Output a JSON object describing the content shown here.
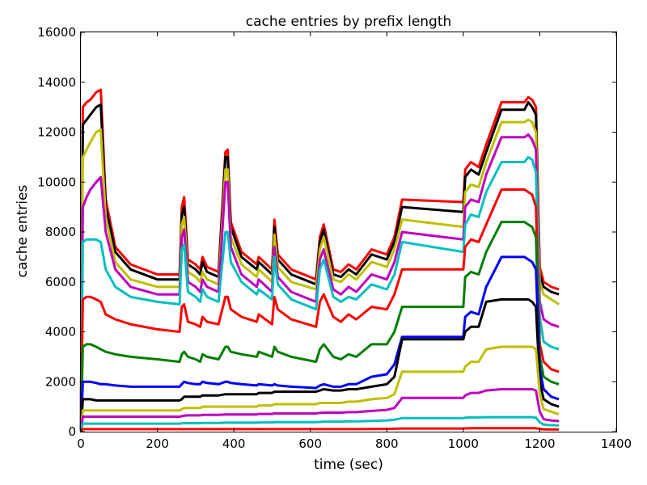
{
  "chart_data": {
    "type": "line",
    "title": "cache entries by prefix length",
    "xlabel": "time (sec)",
    "ylabel": "cache entries",
    "xlim": [
      0,
      1400
    ],
    "ylim": [
      0,
      16000
    ],
    "xticks": [
      0,
      200,
      400,
      600,
      800,
      1000,
      1200,
      1400
    ],
    "yticks": [
      0,
      2000,
      4000,
      6000,
      8000,
      10000,
      12000,
      14000,
      16000
    ],
    "grid": false,
    "legend": "none",
    "x": [
      0,
      5,
      15,
      25,
      40,
      52,
      65,
      90,
      130,
      200,
      258,
      264,
      270,
      280,
      300,
      312,
      318,
      330,
      360,
      378,
      384,
      392,
      420,
      460,
      465,
      500,
      506,
      515,
      550,
      615,
      625,
      635,
      660,
      680,
      700,
      720,
      760,
      800,
      820,
      840,
      1000,
      1005,
      1020,
      1040,
      1060,
      1100,
      1160,
      1170,
      1180,
      1190,
      1200,
      1210,
      1230,
      1250
    ],
    "series": [
      {
        "color": "#ff0000",
        "values": [
          0,
          13000,
          13200,
          13300,
          13600,
          13700,
          9300,
          7400,
          6700,
          6300,
          6300,
          9000,
          9400,
          6900,
          6700,
          6500,
          7000,
          6600,
          6400,
          11200,
          11300,
          8400,
          7200,
          6700,
          7000,
          6500,
          8500,
          7100,
          6500,
          6100,
          7800,
          8300,
          6500,
          6400,
          6700,
          6500,
          7300,
          7100,
          7800,
          9300,
          9200,
          10500,
          10800,
          10600,
          11500,
          13200,
          13200,
          13400,
          13300,
          13000,
          6600,
          6000,
          5800,
          5700
        ]
      },
      {
        "color": "#000000",
        "values": [
          0,
          12300,
          12500,
          12700,
          13000,
          13100,
          9000,
          7200,
          6500,
          6100,
          6100,
          8700,
          9000,
          6700,
          6500,
          6300,
          6800,
          6400,
          6200,
          11000,
          11000,
          8200,
          7000,
          6500,
          6800,
          6300,
          8200,
          6900,
          6300,
          5900,
          7600,
          8100,
          6300,
          6200,
          6500,
          6300,
          7100,
          6900,
          7600,
          9000,
          8800,
          10200,
          10500,
          10300,
          11200,
          12900,
          12900,
          13200,
          13000,
          12700,
          6300,
          5800,
          5600,
          5500
        ]
      },
      {
        "color": "#bfbf00",
        "values": [
          0,
          11000,
          11300,
          11600,
          12000,
          12100,
          8600,
          6800,
          6100,
          5800,
          5800,
          8300,
          8600,
          6400,
          6200,
          6000,
          6400,
          6100,
          5900,
          10500,
          10500,
          7800,
          6700,
          6200,
          6500,
          6000,
          7900,
          6600,
          6000,
          5700,
          7300,
          7800,
          6100,
          6000,
          6300,
          6100,
          6800,
          6600,
          7300,
          8500,
          8200,
          9600,
          9900,
          9800,
          10800,
          12400,
          12400,
          12500,
          12400,
          12000,
          6000,
          5500,
          5300,
          5100
        ]
      },
      {
        "color": "#bf00bf",
        "values": [
          0,
          9000,
          9400,
          9700,
          10000,
          10200,
          8000,
          6500,
          5800,
          5500,
          5500,
          7800,
          8100,
          6000,
          5800,
          5600,
          6100,
          5800,
          5600,
          10000,
          10000,
          7400,
          6300,
          5800,
          6100,
          5600,
          7400,
          6200,
          5600,
          5200,
          6900,
          7300,
          5700,
          5500,
          5800,
          5600,
          6300,
          6100,
          6800,
          8000,
          7700,
          9000,
          9300,
          9200,
          10300,
          11800,
          11800,
          11900,
          11700,
          11300,
          5200,
          4500,
          4300,
          4200
        ]
      },
      {
        "color": "#00bfbf",
        "values": [
          0,
          7600,
          7700,
          7700,
          7700,
          7600,
          6500,
          5800,
          5400,
          5200,
          5100,
          7300,
          7500,
          5600,
          5400,
          5200,
          5700,
          5400,
          5200,
          8000,
          8000,
          6800,
          6000,
          5500,
          5700,
          5300,
          7000,
          5900,
          5300,
          4900,
          6500,
          6900,
          5400,
          5200,
          5400,
          5300,
          5900,
          5700,
          6300,
          7600,
          7200,
          8300,
          8700,
          8600,
          9600,
          10800,
          10800,
          11000,
          10900,
          10400,
          4600,
          3600,
          3400,
          3300
        ]
      },
      {
        "color": "#ff0000",
        "values": [
          0,
          5300,
          5400,
          5400,
          5300,
          5200,
          4700,
          4500,
          4300,
          4100,
          4000,
          5000,
          5100,
          4400,
          4300,
          4200,
          4600,
          4400,
          4300,
          5400,
          5400,
          4900,
          4600,
          4400,
          4700,
          4300,
          5400,
          4900,
          4500,
          4200,
          5200,
          5500,
          4600,
          4400,
          4700,
          4500,
          5000,
          4900,
          5500,
          6500,
          6500,
          7400,
          7700,
          7600,
          8300,
          9700,
          9700,
          9600,
          9500,
          9000,
          3500,
          2800,
          2500,
          2400
        ]
      },
      {
        "color": "#007f00",
        "values": [
          0,
          3400,
          3500,
          3500,
          3400,
          3300,
          3200,
          3100,
          3000,
          2900,
          2800,
          3100,
          3200,
          3000,
          2900,
          2800,
          3100,
          3000,
          2900,
          3400,
          3400,
          3200,
          3100,
          3000,
          3200,
          3000,
          3400,
          3200,
          3000,
          2800,
          3300,
          3500,
          3000,
          2900,
          3100,
          3000,
          3500,
          3500,
          4000,
          5000,
          5000,
          6200,
          6400,
          6300,
          7200,
          8400,
          8400,
          8300,
          8200,
          7800,
          3000,
          2200,
          2000,
          1900
        ]
      },
      {
        "color": "#0000ff",
        "values": [
          0,
          2000,
          2000,
          2000,
          1950,
          1900,
          1900,
          1850,
          1800,
          1800,
          1800,
          1900,
          2000,
          1950,
          1900,
          1900,
          2000,
          1950,
          1900,
          2000,
          2000,
          1950,
          1900,
          1850,
          1900,
          1850,
          1900,
          1850,
          1800,
          1750,
          1850,
          1900,
          1800,
          1800,
          1900,
          1900,
          2200,
          2300,
          2700,
          3800,
          3800,
          4600,
          4800,
          4700,
          5800,
          7000,
          7000,
          6900,
          6800,
          6500,
          2500,
          1700,
          1400,
          1300
        ]
      },
      {
        "color": "#000000",
        "values": [
          0,
          1300,
          1300,
          1300,
          1250,
          1250,
          1250,
          1250,
          1250,
          1250,
          1250,
          1300,
          1400,
          1400,
          1400,
          1400,
          1450,
          1450,
          1450,
          1500,
          1500,
          1500,
          1500,
          1500,
          1550,
          1550,
          1600,
          1600,
          1600,
          1600,
          1650,
          1700,
          1650,
          1650,
          1700,
          1700,
          1800,
          1900,
          2200,
          3700,
          3700,
          4000,
          4200,
          4200,
          5200,
          5300,
          5300,
          5300,
          5200,
          5000,
          2000,
          1300,
          1100,
          1000
        ]
      },
      {
        "color": "#bfbf00",
        "values": [
          0,
          850,
          850,
          850,
          850,
          850,
          850,
          850,
          850,
          850,
          850,
          900,
          950,
          950,
          950,
          950,
          1000,
          1000,
          1000,
          1000,
          1000,
          1000,
          1000,
          1000,
          1050,
          1050,
          1100,
          1100,
          1100,
          1100,
          1150,
          1150,
          1150,
          1150,
          1200,
          1200,
          1300,
          1350,
          1500,
          2400,
          2400,
          2600,
          2800,
          2800,
          3300,
          3400,
          3400,
          3400,
          3400,
          3300,
          1500,
          900,
          800,
          700
        ]
      },
      {
        "color": "#bf00bf",
        "values": [
          0,
          600,
          600,
          600,
          600,
          600,
          600,
          600,
          600,
          600,
          600,
          620,
          640,
          650,
          650,
          650,
          670,
          670,
          670,
          690,
          690,
          690,
          690,
          690,
          710,
          710,
          730,
          730,
          730,
          730,
          750,
          760,
          760,
          760,
          780,
          780,
          830,
          870,
          950,
          1350,
          1350,
          1450,
          1550,
          1550,
          1650,
          1700,
          1700,
          1700,
          1700,
          1650,
          800,
          500,
          450,
          420
        ]
      },
      {
        "color": "#00bfbf",
        "values": [
          0,
          320,
          320,
          320,
          320,
          320,
          320,
          320,
          320,
          320,
          320,
          330,
          340,
          340,
          340,
          340,
          350,
          350,
          350,
          360,
          360,
          360,
          360,
          360,
          370,
          370,
          380,
          380,
          380,
          380,
          390,
          400,
          400,
          400,
          410,
          410,
          430,
          450,
          480,
          540,
          540,
          560,
          570,
          570,
          580,
          580,
          580,
          580,
          580,
          560,
          380,
          280,
          260,
          250
        ]
      },
      {
        "color": "#ff0000",
        "values": [
          0,
          100,
          100,
          100,
          100,
          100,
          100,
          100,
          100,
          100,
          100,
          100,
          100,
          100,
          100,
          100,
          100,
          100,
          100,
          100,
          100,
          100,
          100,
          100,
          100,
          100,
          100,
          100,
          100,
          100,
          100,
          100,
          100,
          100,
          100,
          100,
          105,
          110,
          115,
          125,
          125,
          130,
          135,
          135,
          140,
          140,
          140,
          140,
          140,
          135,
          110,
          95,
          90,
          90
        ]
      }
    ]
  }
}
